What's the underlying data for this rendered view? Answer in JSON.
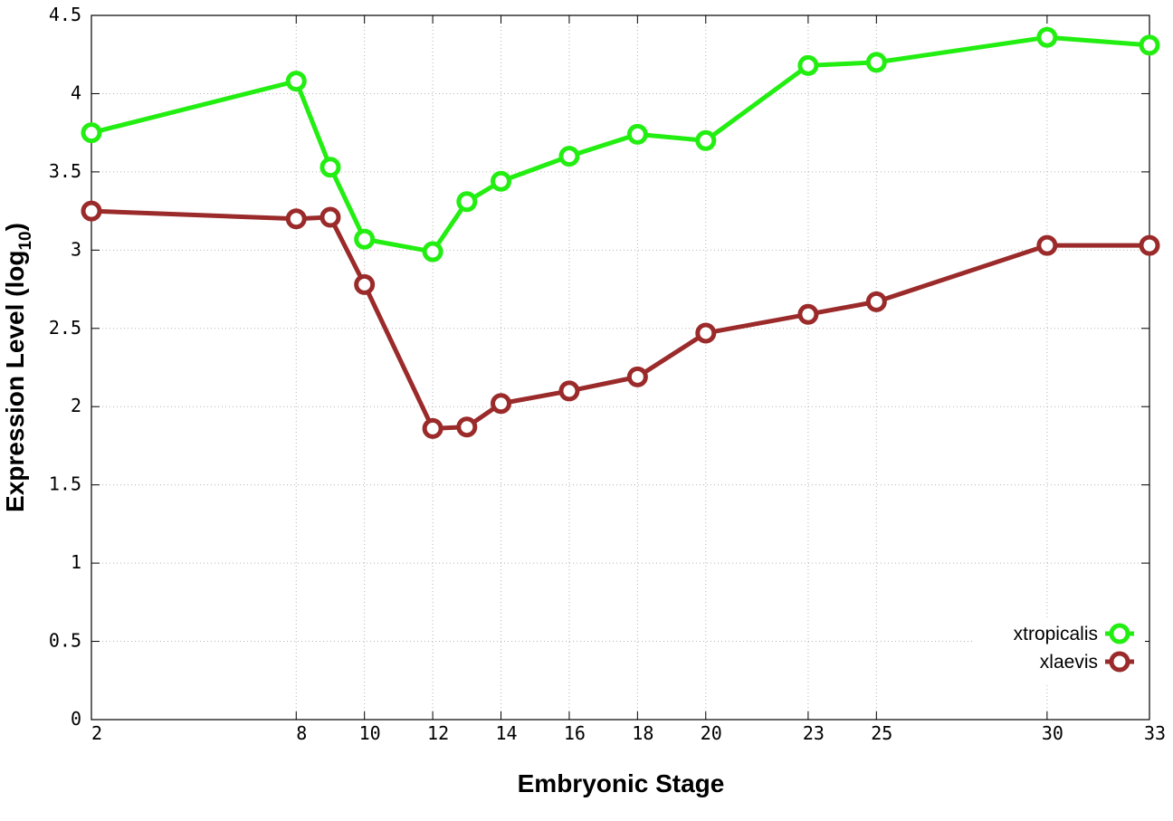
{
  "chart_data": {
    "type": "line",
    "xlabel": "Embryonic Stage",
    "ylabel_main": "Expression Level (log",
    "ylabel_sub": "10",
    "ylabel_close": ")",
    "xlim": [
      2,
      33
    ],
    "ylim": [
      0,
      4.5
    ],
    "x_ticks": [
      2,
      8,
      10,
      12,
      14,
      16,
      18,
      20,
      23,
      25,
      30,
      33
    ],
    "y_ticks": [
      0,
      0.5,
      1,
      1.5,
      2,
      2.5,
      3,
      3.5,
      4,
      4.5
    ],
    "y_tick_labels": [
      "0",
      "0.5",
      "1",
      "1.5",
      "2",
      "2.5",
      "3",
      "3.5",
      "4",
      "4.5"
    ],
    "grid": true,
    "legend_position": "bottom-right",
    "x": [
      2,
      8,
      9,
      10,
      12,
      13,
      14,
      16,
      18,
      20,
      23,
      25,
      30,
      33
    ],
    "series": [
      {
        "name": "xtropicalis",
        "color": "#22ee11",
        "values": [
          3.75,
          4.08,
          3.53,
          3.07,
          2.99,
          3.31,
          3.44,
          3.6,
          3.74,
          3.7,
          4.18,
          4.2,
          4.36,
          4.31
        ]
      },
      {
        "name": "xlaevis",
        "color": "#9b2a2a",
        "values": [
          3.25,
          3.2,
          3.21,
          2.78,
          1.86,
          1.87,
          2.02,
          2.1,
          2.19,
          2.47,
          2.59,
          2.67,
          3.03,
          3.03
        ]
      }
    ]
  }
}
